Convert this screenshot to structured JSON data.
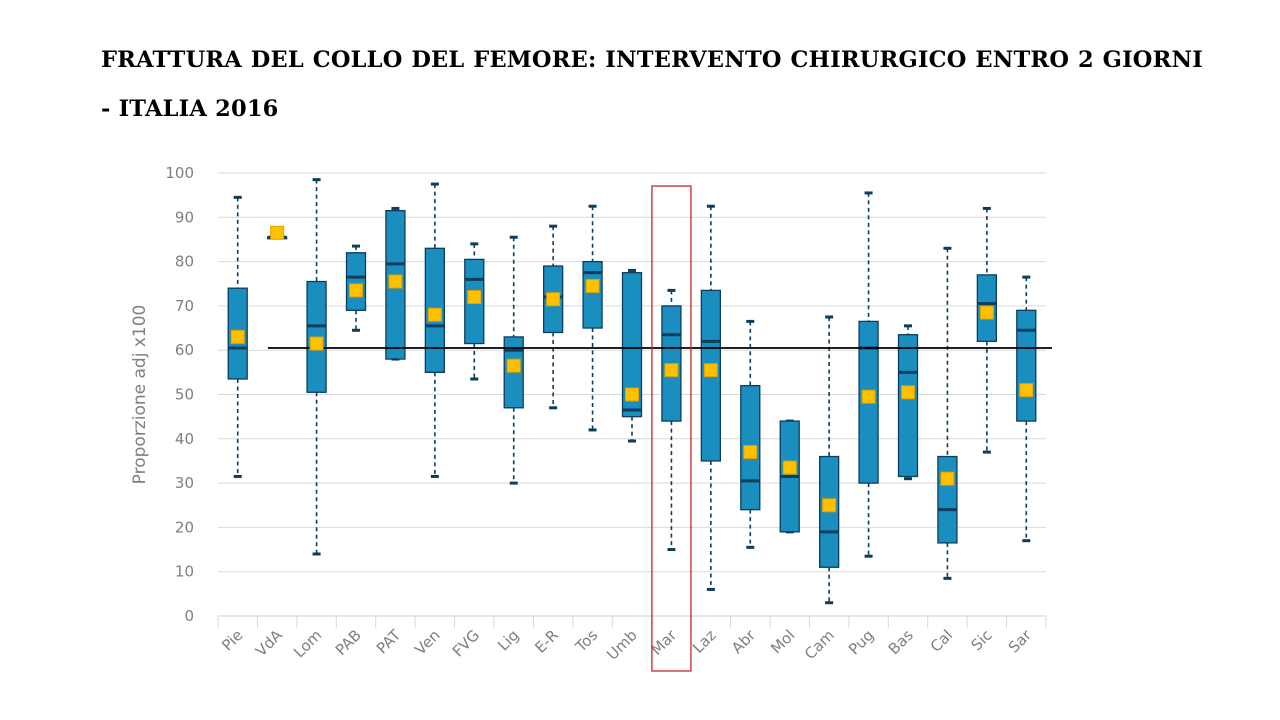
{
  "title": "FRATTURA DEL COLLO DEL FEMORE: INTERVENTO CHIRURGICO ENTRO 2 GIORNI - ITALIA 2016",
  "colors": {
    "box_fill": "#1a8fbf",
    "box_stroke": "#0d3d5c",
    "median": "#0d3d5c",
    "whisker": "#0d3d5c",
    "mean_marker": "#ffc000",
    "mean_marker_stroke": "#e0a100",
    "reference_line": "#000000",
    "grid": "#d9d9d9",
    "highlight": "#c0282d"
  },
  "chart_data": {
    "type": "box",
    "title": "",
    "xlabel": "",
    "ylabel": "Proporzione adj x100",
    "ylim": [
      0,
      100
    ],
    "yticks": [
      0,
      10,
      20,
      30,
      40,
      50,
      60,
      70,
      80,
      90,
      100
    ],
    "grid": true,
    "reference_line": 60.5,
    "highlighted_category": "Mar",
    "categories": [
      "Pie",
      "VdA",
      "Lom",
      "PAB",
      "PAT",
      "Ven",
      "FVG",
      "Lig",
      "E-R",
      "Tos",
      "Umb",
      "Mar",
      "Laz",
      "Abr",
      "Mol",
      "Cam",
      "Pug",
      "Bas",
      "Cal",
      "Sic",
      "Sar"
    ],
    "boxes": [
      {
        "min": 31.5,
        "q1": 53.5,
        "median": 60.5,
        "q3": 74,
        "max": 94.5,
        "mean": 63
      },
      {
        "min": 85.5,
        "q1": 85.5,
        "median": 85.5,
        "q3": 85.5,
        "max": 85.5,
        "mean": 86.5
      },
      {
        "min": 14,
        "q1": 50.5,
        "median": 65.5,
        "q3": 75.5,
        "max": 98.5,
        "mean": 61.5
      },
      {
        "min": 64.5,
        "q1": 69,
        "median": 76.5,
        "q3": 82,
        "max": 83.5,
        "mean": 73.5
      },
      {
        "min": 58,
        "q1": 58,
        "median": 79.5,
        "q3": 91.5,
        "max": 92,
        "mean": 75.5
      },
      {
        "min": 31.5,
        "q1": 55,
        "median": 65.5,
        "q3": 83,
        "max": 97.5,
        "mean": 68
      },
      {
        "min": 53.5,
        "q1": 61.5,
        "median": 76,
        "q3": 80.5,
        "max": 84,
        "mean": 72
      },
      {
        "min": 30,
        "q1": 47,
        "median": 60,
        "q3": 63,
        "max": 85.5,
        "mean": 56.5
      },
      {
        "min": 47,
        "q1": 64,
        "median": 72,
        "q3": 79,
        "max": 88,
        "mean": 71.5
      },
      {
        "min": 42,
        "q1": 65,
        "median": 77.5,
        "q3": 80,
        "max": 92.5,
        "mean": 74.5
      },
      {
        "min": 39.5,
        "q1": 45,
        "median": 46.5,
        "q3": 77.5,
        "max": 78,
        "mean": 50
      },
      {
        "min": 15,
        "q1": 44,
        "median": 63.5,
        "q3": 70,
        "max": 73.5,
        "mean": 55.5
      },
      {
        "min": 6,
        "q1": 35,
        "median": 62,
        "q3": 73.5,
        "max": 92.5,
        "mean": 55.5
      },
      {
        "min": 15.5,
        "q1": 24,
        "median": 30.5,
        "q3": 52,
        "max": 66.5,
        "mean": 37
      },
      {
        "min": 19,
        "q1": 19,
        "median": 31.5,
        "q3": 44,
        "max": 44,
        "mean": 33.5
      },
      {
        "min": 3,
        "q1": 11,
        "median": 19,
        "q3": 36,
        "max": 67.5,
        "mean": 25
      },
      {
        "min": 13.5,
        "q1": 30,
        "median": 60.5,
        "q3": 66.5,
        "max": 95.5,
        "mean": 49.5
      },
      {
        "min": 31,
        "q1": 31.5,
        "median": 55,
        "q3": 63.5,
        "max": 65.5,
        "mean": 50.5
      },
      {
        "min": 8.5,
        "q1": 16.5,
        "median": 24,
        "q3": 36,
        "max": 83,
        "mean": 31
      },
      {
        "min": 37,
        "q1": 62,
        "median": 70.5,
        "q3": 77,
        "max": 92,
        "mean": 68.5
      },
      {
        "min": 17,
        "q1": 44,
        "median": 64.5,
        "q3": 69,
        "max": 76.5,
        "mean": 51
      }
    ]
  }
}
